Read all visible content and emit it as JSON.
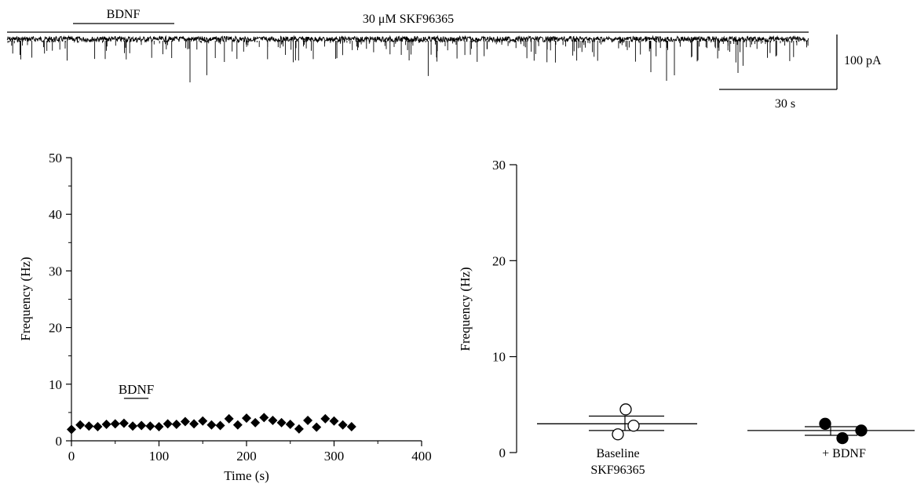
{
  "trace": {
    "bdnf_label": "BDNF",
    "drug_label": "30 μM SKF96365",
    "scale_current_label": "100 pA",
    "scale_time_label": "30 s"
  },
  "chart_data": [
    {
      "type": "scatter",
      "title": "",
      "xlabel": "Time (s)",
      "ylabel": "Frequency (Hz)",
      "xlim": [
        0,
        400
      ],
      "ylim": [
        0,
        50
      ],
      "xticks": [
        0,
        100,
        200,
        300,
        400
      ],
      "yticks": [
        0,
        10,
        20,
        30,
        40,
        50
      ],
      "xtick_labels": [
        "0",
        "100",
        "200",
        "300",
        "400"
      ],
      "ytick_labels": [
        "0",
        "10",
        "20",
        "30",
        "40",
        "50"
      ],
      "annotation": {
        "text": "BDNF",
        "x_range": [
          60,
          88
        ]
      },
      "marker": "filled-diamond",
      "grid": false,
      "points": [
        {
          "x": 0,
          "y": 2.0
        },
        {
          "x": 10,
          "y": 2.8
        },
        {
          "x": 20,
          "y": 2.6
        },
        {
          "x": 30,
          "y": 2.5
        },
        {
          "x": 40,
          "y": 2.9
        },
        {
          "x": 50,
          "y": 3.0
        },
        {
          "x": 60,
          "y": 3.1
        },
        {
          "x": 70,
          "y": 2.6
        },
        {
          "x": 80,
          "y": 2.7
        },
        {
          "x": 90,
          "y": 2.6
        },
        {
          "x": 100,
          "y": 2.5
        },
        {
          "x": 110,
          "y": 3.0
        },
        {
          "x": 120,
          "y": 2.9
        },
        {
          "x": 130,
          "y": 3.4
        },
        {
          "x": 140,
          "y": 3.0
        },
        {
          "x": 150,
          "y": 3.5
        },
        {
          "x": 160,
          "y": 2.8
        },
        {
          "x": 170,
          "y": 2.7
        },
        {
          "x": 180,
          "y": 3.9
        },
        {
          "x": 190,
          "y": 2.8
        },
        {
          "x": 200,
          "y": 4.0
        },
        {
          "x": 210,
          "y": 3.2
        },
        {
          "x": 220,
          "y": 4.1
        },
        {
          "x": 230,
          "y": 3.6
        },
        {
          "x": 240,
          "y": 3.2
        },
        {
          "x": 250,
          "y": 2.9
        },
        {
          "x": 260,
          "y": 2.1
        },
        {
          "x": 270,
          "y": 3.6
        },
        {
          "x": 280,
          "y": 2.4
        },
        {
          "x": 290,
          "y": 3.9
        },
        {
          "x": 300,
          "y": 3.5
        },
        {
          "x": 310,
          "y": 2.8
        },
        {
          "x": 320,
          "y": 2.5
        }
      ]
    },
    {
      "type": "scatter",
      "title": "",
      "xlabel": "",
      "ylabel": "Frequency (Hz)",
      "ylim": [
        0,
        30
      ],
      "yticks": [
        0,
        10,
        20,
        30
      ],
      "ytick_labels": [
        "0",
        "10",
        "20",
        "30"
      ],
      "grid": false,
      "categories": [
        {
          "label_line1": "Baseline",
          "label_line2": "SKF96365",
          "marker": "open-circle",
          "mean": 3.0,
          "sem_low": 2.3,
          "sem_high": 3.8,
          "values": [
            4.5,
            1.9,
            2.8
          ]
        },
        {
          "label_line1": "+ BDNF",
          "label_line2": "",
          "marker": "filled-circle",
          "mean": 2.3,
          "sem_low": 1.8,
          "sem_high": 2.7,
          "values": [
            3.0,
            1.5,
            2.3
          ]
        }
      ]
    }
  ]
}
